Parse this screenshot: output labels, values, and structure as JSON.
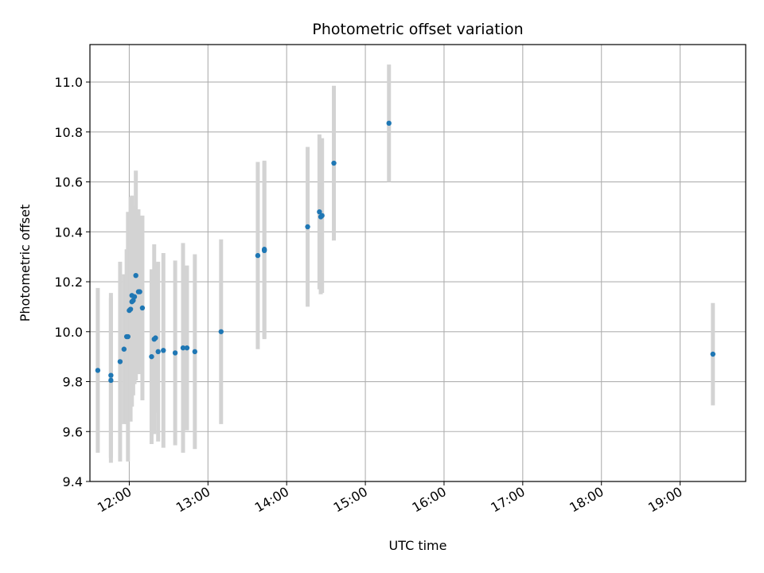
{
  "chart_data": {
    "type": "scatter",
    "title": "Photometric offset variation",
    "xlabel": "UTC time",
    "ylabel": "Photometric offset",
    "grid": true,
    "legend": "none",
    "xlim": [
      "11:30",
      "19:50"
    ],
    "ylim": [
      9.4,
      11.15
    ],
    "x_ticks": [
      "12:00",
      "13:00",
      "14:00",
      "15:00",
      "16:00",
      "17:00",
      "18:00",
      "19:00"
    ],
    "y_ticks": [
      "9.4",
      "9.6",
      "9.8",
      "10.0",
      "10.2",
      "10.4",
      "10.6",
      "10.8",
      "11.0"
    ],
    "colors": {
      "marker": "#1f77b4",
      "errorbar": "#d3d3d3",
      "grid": "#b0b0b0"
    },
    "series": [
      {
        "points": [
          {
            "x": "11:36",
            "y": 9.845,
            "yerr": 0.33
          },
          {
            "x": "11:46",
            "y": 9.805,
            "yerr": 0.33
          },
          {
            "x": "11:46",
            "y": 9.825,
            "yerr": 0.33
          },
          {
            "x": "11:53",
            "y": 9.88,
            "yerr": 0.4
          },
          {
            "x": "11:56",
            "y": 9.93,
            "yerr": 0.3
          },
          {
            "x": "11:58",
            "y": 9.98,
            "yerr": 0.35
          },
          {
            "x": "11:59",
            "y": 9.98,
            "yerr": 0.5
          },
          {
            "x": "12:00",
            "y": 10.085,
            "yerr": 0.38
          },
          {
            "x": "12:01",
            "y": 10.09,
            "yerr": 0.45
          },
          {
            "x": "12:02",
            "y": 10.12,
            "yerr": 0.42
          },
          {
            "x": "12:02",
            "y": 10.145,
            "yerr": 0.4
          },
          {
            "x": "12:03",
            "y": 10.125,
            "yerr": 0.38
          },
          {
            "x": "12:04",
            "y": 10.14,
            "yerr": 0.35
          },
          {
            "x": "12:05",
            "y": 10.225,
            "yerr": 0.42
          },
          {
            "x": "12:07",
            "y": 10.16,
            "yerr": 0.33
          },
          {
            "x": "12:08",
            "y": 10.16,
            "yerr": 0.3
          },
          {
            "x": "12:10",
            "y": 10.095,
            "yerr": 0.37
          },
          {
            "x": "12:17",
            "y": 9.9,
            "yerr": 0.35
          },
          {
            "x": "12:19",
            "y": 9.97,
            "yerr": 0.38
          },
          {
            "x": "12:20",
            "y": 9.975,
            "yerr": 0.3
          },
          {
            "x": "12:22",
            "y": 9.92,
            "yerr": 0.36
          },
          {
            "x": "12:26",
            "y": 9.925,
            "yerr": 0.39
          },
          {
            "x": "12:35",
            "y": 9.915,
            "yerr": 0.37
          },
          {
            "x": "12:41",
            "y": 9.935,
            "yerr": 0.42
          },
          {
            "x": "12:44",
            "y": 9.935,
            "yerr": 0.33
          },
          {
            "x": "12:50",
            "y": 9.92,
            "yerr": 0.39
          },
          {
            "x": "13:10",
            "y": 10.0,
            "yerr": 0.37
          },
          {
            "x": "13:38",
            "y": 10.305,
            "yerr": 0.375
          },
          {
            "x": "13:43",
            "y": 10.325,
            "yerr": 0.355
          },
          {
            "x": "13:43",
            "y": 10.33,
            "yerr": 0.355
          },
          {
            "x": "14:16",
            "y": 10.42,
            "yerr": 0.32
          },
          {
            "x": "14:25",
            "y": 10.48,
            "yerr": 0.31
          },
          {
            "x": "14:26",
            "y": 10.46,
            "yerr": 0.31
          },
          {
            "x": "14:27",
            "y": 10.465,
            "yerr": 0.31
          },
          {
            "x": "14:36",
            "y": 10.675,
            "yerr": 0.31
          },
          {
            "x": "15:18",
            "y": 10.835,
            "yerr": 0.235
          },
          {
            "x": "19:25",
            "y": 9.91,
            "yerr": 0.205
          }
        ]
      }
    ]
  }
}
